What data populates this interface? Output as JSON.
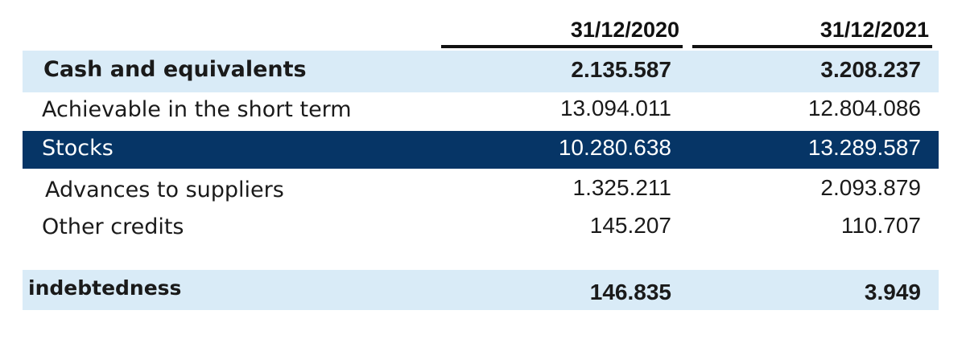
{
  "header": {
    "col1": "31/12/2020",
    "col2": "31/12/2021"
  },
  "rows": [
    {
      "label": "Cash and equivalents",
      "v2020": "2.135.587",
      "v2021": "3.208.237"
    },
    {
      "label": "Achievable in the short term",
      "v2020": "13.094.011",
      "v2021": "12.804.086"
    },
    {
      "label": "Stocks",
      "v2020": "10.280.638",
      "v2021": "13.289.587"
    },
    {
      "label": "Advances to suppliers",
      "v2020": "1.325.211",
      "v2021": "2.093.879"
    },
    {
      "label": "Other credits",
      "v2020": "145.207",
      "v2021": "110.707"
    },
    {
      "label": "indebtedness",
      "v2020": "146.835",
      "v2021": "3.949"
    }
  ],
  "colors": {
    "light_row": "#d9ebf7",
    "dark_row": "#063566",
    "text": "#1a1a1a",
    "inverse_text": "#ffffff"
  }
}
